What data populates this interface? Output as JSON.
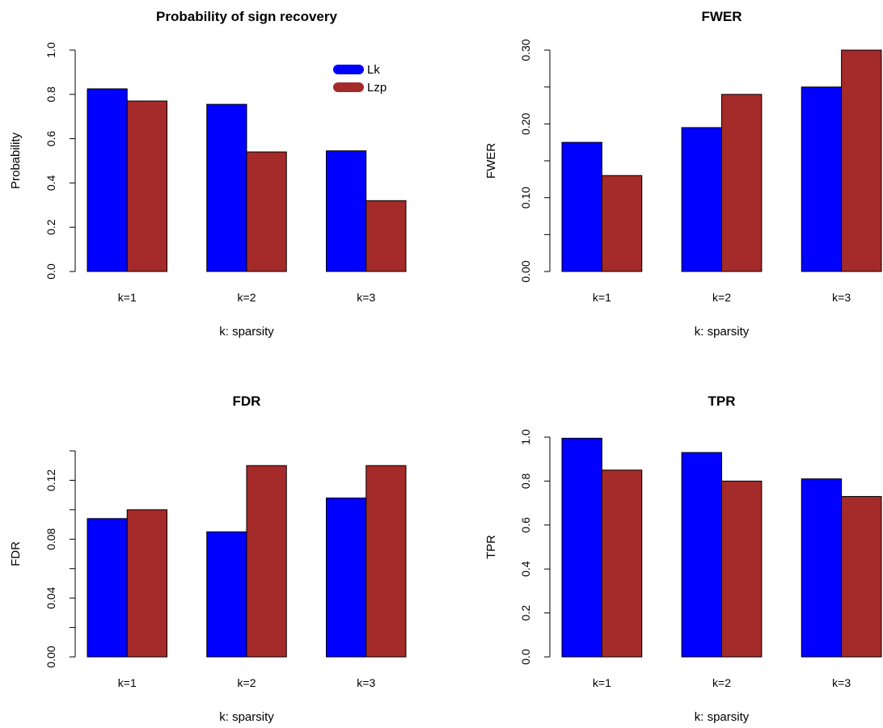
{
  "colors": {
    "Lk": "#0000ff",
    "Lzp": "#a52a2a"
  },
  "chart_data": [
    {
      "type": "bar",
      "title": "Probability of sign recovery",
      "xlabel": "k: sparsity",
      "ylabel": "Probability",
      "categories": [
        "k=1",
        "k=2",
        "k=3"
      ],
      "series": [
        {
          "name": "Lk",
          "values": [
            0.825,
            0.755,
            0.545
          ]
        },
        {
          "name": "Lzp",
          "values": [
            0.77,
            0.54,
            0.32
          ]
        }
      ],
      "ylim": [
        0,
        1.0
      ],
      "yticks": [
        0.0,
        0.2,
        0.4,
        0.6,
        0.8,
        1.0
      ],
      "ytick_labels": [
        "0.0",
        "0.2",
        "0.4",
        "0.6",
        "0.8",
        "1.0"
      ],
      "legend": {
        "placement": "top-right",
        "entries": [
          "Lk",
          "Lzp"
        ]
      },
      "grid": false
    },
    {
      "type": "bar",
      "title": "FWER",
      "xlabel": "k: sparsity",
      "ylabel": "FWER",
      "categories": [
        "k=1",
        "k=2",
        "k=3"
      ],
      "series": [
        {
          "name": "Lk",
          "values": [
            0.175,
            0.195,
            0.25
          ]
        },
        {
          "name": "Lzp",
          "values": [
            0.13,
            0.24,
            0.3
          ]
        }
      ],
      "ylim": [
        0,
        0.3
      ],
      "yticks": [
        0.0,
        0.05,
        0.1,
        0.15,
        0.2,
        0.25,
        0.3
      ],
      "ytick_labels": [
        "0.00",
        "",
        "0.10",
        "",
        "0.20",
        "",
        "0.30"
      ],
      "grid": false
    },
    {
      "type": "bar",
      "title": "FDR",
      "xlabel": "k: sparsity",
      "ylabel": "FDR",
      "categories": [
        "k=1",
        "k=2",
        "k=3"
      ],
      "series": [
        {
          "name": "Lk",
          "values": [
            0.094,
            0.085,
            0.108
          ]
        },
        {
          "name": "Lzp",
          "values": [
            0.1,
            0.13,
            0.13
          ]
        }
      ],
      "ylim": [
        0,
        0.14
      ],
      "yticks": [
        0.0,
        0.02,
        0.04,
        0.06,
        0.08,
        0.1,
        0.12,
        0.14
      ],
      "ytick_labels": [
        "0.00",
        "",
        "0.04",
        "",
        "0.08",
        "",
        "0.12",
        ""
      ],
      "grid": false
    },
    {
      "type": "bar",
      "title": "TPR",
      "xlabel": "k: sparsity",
      "ylabel": "TPR",
      "categories": [
        "k=1",
        "k=2",
        "k=3"
      ],
      "series": [
        {
          "name": "Lk",
          "values": [
            0.995,
            0.93,
            0.81
          ]
        },
        {
          "name": "Lzp",
          "values": [
            0.85,
            0.8,
            0.73
          ]
        }
      ],
      "ylim": [
        0,
        1.0
      ],
      "yticks": [
        0.0,
        0.2,
        0.4,
        0.6,
        0.8,
        1.0
      ],
      "ytick_labels": [
        "0.0",
        "0.2",
        "0.4",
        "0.6",
        "0.8",
        "1.0"
      ],
      "grid": false
    }
  ]
}
